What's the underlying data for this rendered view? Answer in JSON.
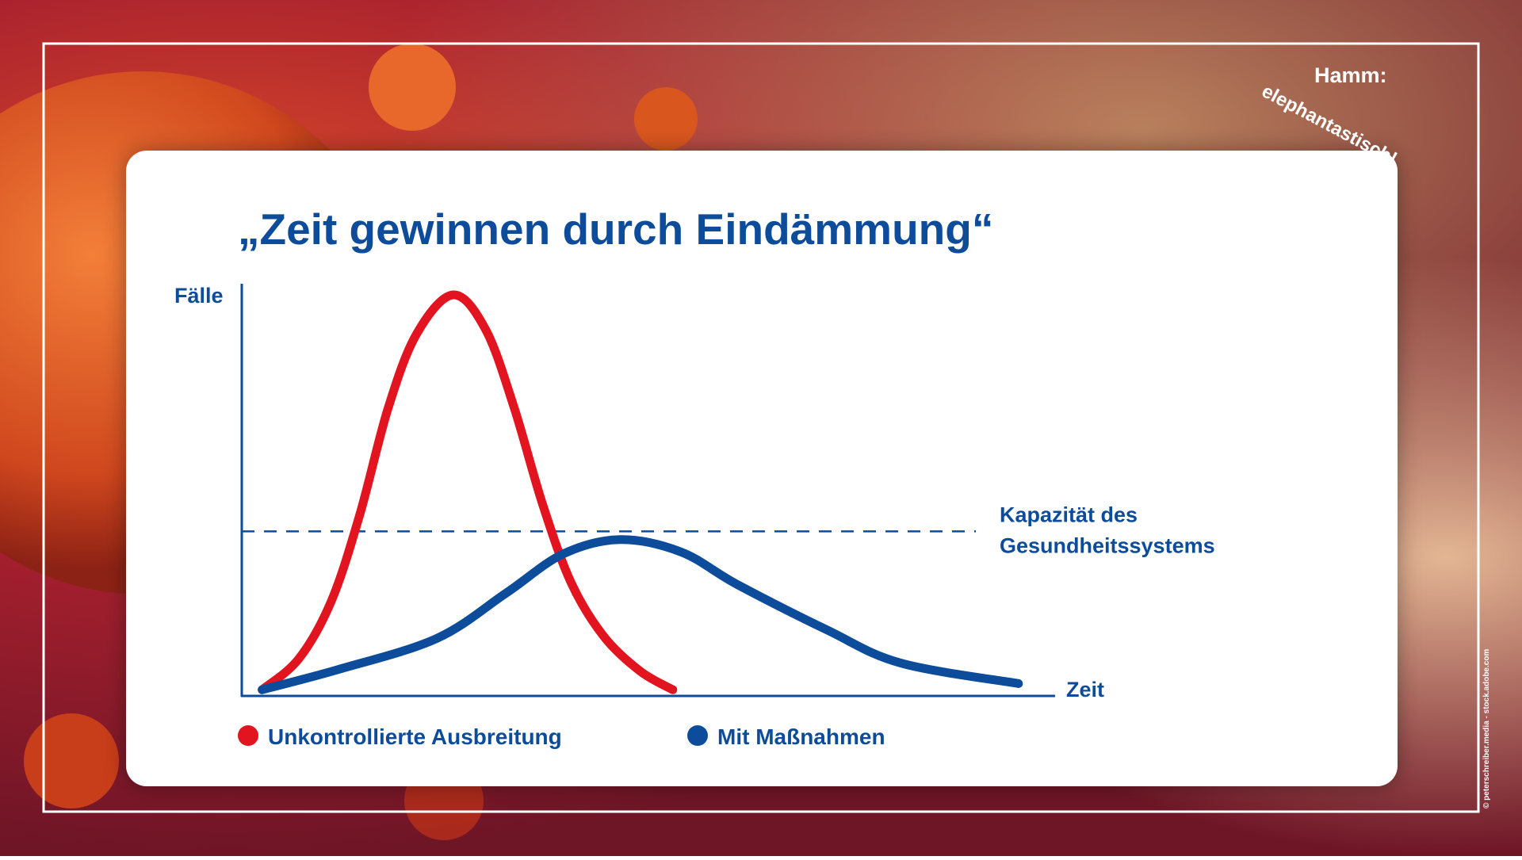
{
  "chart_data": {
    "type": "line",
    "title": "„Zeit gewinnen durch Eindämmung“",
    "ylabel": "Fälle",
    "xlabel": "Zeit",
    "xlim": [
      0,
      100
    ],
    "ylim": [
      0,
      100
    ],
    "capacity": {
      "value": 40,
      "label": [
        "Kapazität des",
        "Gesundheitssystems"
      ],
      "color": "#0d4c9b"
    },
    "series": [
      {
        "name": "Unkontrollierte Ausbreitung",
        "color": "#e2141f",
        "x": [
          2.5,
          7,
          11,
          14.5,
          18,
          21.5,
          26,
          30,
          33.5,
          37,
          40.5,
          44.5,
          49,
          53
        ],
        "values": [
          1.5,
          9,
          23,
          44,
          70,
          88,
          97.5,
          89,
          70,
          46.5,
          27.5,
          14.5,
          6,
          1.5
        ]
      },
      {
        "name": "Mit Maßnahmen",
        "color": "#0d4c9b",
        "x": [
          2.5,
          12,
          24,
          32.5,
          39.5,
          46.5,
          54,
          61,
          72,
          81,
          95.5
        ],
        "values": [
          1.5,
          6.5,
          14,
          25,
          34.5,
          38,
          35,
          27,
          16,
          8,
          3
        ]
      }
    ]
  },
  "branding": {
    "logo": "elephantastisch!",
    "city": "Hamm:",
    "credit": "© peterschreiber.media - stock.adobe.com"
  }
}
